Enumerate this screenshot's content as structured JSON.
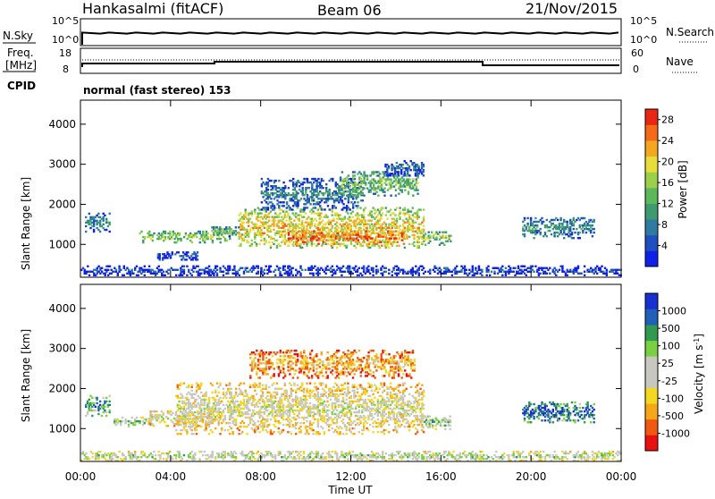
{
  "header": {
    "station": "Hankasalmi (fitACF)",
    "beam": "Beam 06",
    "date": "21/Nov/2015"
  },
  "nsky_panel": {
    "left_label": "N.Sky",
    "right_label": "N.Search",
    "left_ticks": [
      "10^5",
      "10^0"
    ],
    "right_ticks": [
      "10^5",
      "10^0"
    ]
  },
  "freq_panel": {
    "left_label_line1": "Freq.",
    "left_label_line2": "[MHz]",
    "right_label": "Nave",
    "left_ticks": [
      "18",
      "8"
    ],
    "right_ticks": [
      "60",
      "0"
    ]
  },
  "cpid": {
    "label": "CPID",
    "text": "normal (fast stereo) 153"
  },
  "chart_data": [
    {
      "type": "heatmap",
      "title": "",
      "xlabel": "Time UT",
      "ylabel": "Slant Range [km]",
      "xlim": [
        0,
        24
      ],
      "ylim": [
        180,
        4600
      ],
      "x_ticks": [
        "00:00",
        "04:00",
        "08:00",
        "12:00",
        "16:00",
        "20:00",
        "00:00"
      ],
      "y_ticks": [
        "1000",
        "2000",
        "3000",
        "4000"
      ],
      "colorbar": {
        "label": "Power [dB]",
        "range": [
          0,
          30
        ],
        "ticks": [
          "4",
          "8",
          "12",
          "16",
          "20",
          "24",
          "28"
        ],
        "colors": [
          "#1020e8",
          "#2050c0",
          "#2f7aa0",
          "#3f9a70",
          "#5db85a",
          "#9bd04a",
          "#e8dc3a",
          "#f4a822",
          "#f46a18",
          "#e82814"
        ]
      },
      "bands": [
        {
          "t0": 0.2,
          "t1": 1.3,
          "r_center": 1550,
          "r_half": 250,
          "level": 0.35
        },
        {
          "t0": 2.6,
          "t1": 6.6,
          "r_center": 1180,
          "r_half": 150,
          "level": 0.55
        },
        {
          "t0": 5.8,
          "t1": 7.2,
          "r_center": 1300,
          "r_half": 120,
          "level": 0.45
        },
        {
          "t0": 7.0,
          "t1": 15.2,
          "r_center": 1400,
          "r_half": 500,
          "level": 0.7
        },
        {
          "t0": 9.2,
          "t1": 14.5,
          "r_center": 1150,
          "r_half": 200,
          "level": 0.9
        },
        {
          "t0": 8.0,
          "t1": 12.5,
          "r_center": 2250,
          "r_half": 400,
          "level": 0.3
        },
        {
          "t0": 11.5,
          "t1": 15.0,
          "r_center": 2500,
          "r_half": 300,
          "level": 0.5
        },
        {
          "t0": 13.5,
          "t1": 15.2,
          "r_center": 2900,
          "r_half": 200,
          "level": 0.25
        },
        {
          "t0": 15.2,
          "t1": 16.4,
          "r_center": 1150,
          "r_half": 180,
          "level": 0.55
        },
        {
          "t0": 19.6,
          "t1": 22.8,
          "r_center": 1400,
          "r_half": 260,
          "level": 0.35
        },
        {
          "t0": 3.4,
          "t1": 5.2,
          "r_center": 700,
          "r_half": 100,
          "level": 0.2
        },
        {
          "t0": 0.0,
          "t1": 24.0,
          "r_center": 330,
          "r_half": 120,
          "level": 0.15
        }
      ]
    },
    {
      "type": "heatmap",
      "title": "",
      "xlabel": "Time UT",
      "ylabel": "Slant Range [km]",
      "xlim": [
        0,
        24
      ],
      "ylim": [
        180,
        4600
      ],
      "x_ticks": [
        "00:00",
        "04:00",
        "08:00",
        "12:00",
        "16:00",
        "20:00",
        "00:00"
      ],
      "y_ticks": [
        "1000",
        "2000",
        "3000",
        "4000"
      ],
      "colorbar": {
        "label": "Velocity [m s^-1]",
        "range": [
          -1000,
          1000
        ],
        "ticks": [
          "1000",
          "500",
          "100",
          "25",
          "-25",
          "-100",
          "-500",
          "-1000"
        ],
        "colors": [
          "#e81010",
          "#f05a10",
          "#f4a818",
          "#f2d820",
          "#c8c8c0",
          "#c8c8c0",
          "#7ad040",
          "#2f9a50",
          "#2060b8",
          "#1830d0"
        ]
      },
      "bands": [
        {
          "t0": 0.2,
          "t1": 1.3,
          "r_center": 1550,
          "r_half": 250,
          "level": 0.8
        },
        {
          "t0": 1.4,
          "t1": 3.2,
          "r_center": 1150,
          "r_half": 120,
          "level": 0.65
        },
        {
          "t0": 3.0,
          "t1": 6.0,
          "r_center": 1250,
          "r_half": 200,
          "level": 0.5
        },
        {
          "t0": 4.2,
          "t1": 15.2,
          "r_center": 1500,
          "r_half": 650,
          "level": 0.5
        },
        {
          "t0": 7.5,
          "t1": 14.8,
          "r_center": 2600,
          "r_half": 350,
          "level": 0.3
        },
        {
          "t0": 15.1,
          "t1": 16.4,
          "r_center": 1150,
          "r_half": 180,
          "level": 0.65
        },
        {
          "t0": 19.6,
          "t1": 22.8,
          "r_center": 1400,
          "r_half": 260,
          "level": 0.9
        },
        {
          "t0": 0.0,
          "t1": 24.0,
          "r_center": 300,
          "r_half": 120,
          "level": 0.6
        }
      ]
    }
  ]
}
